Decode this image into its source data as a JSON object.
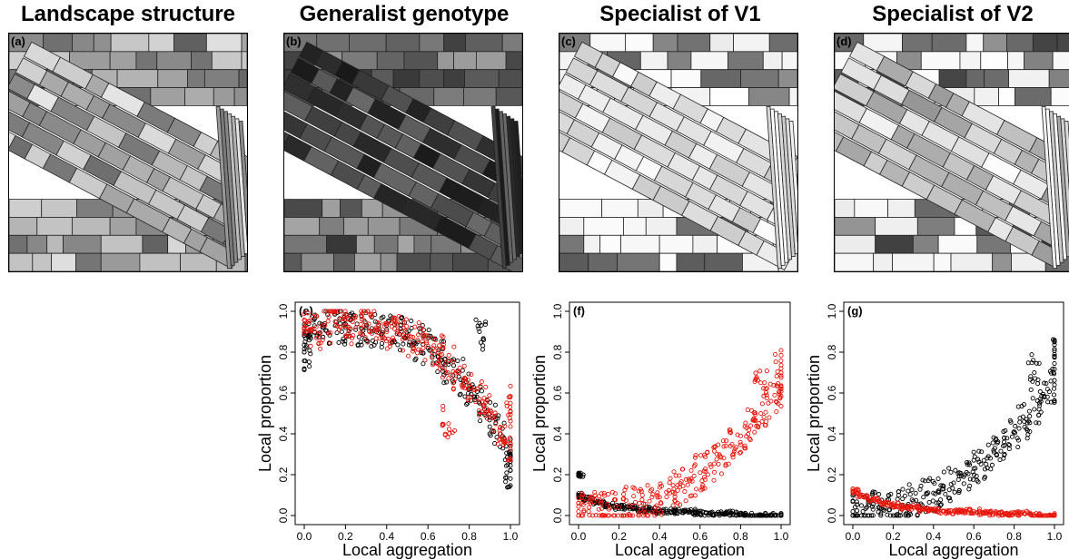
{
  "titles": [
    {
      "text": "Landscape structure"
    },
    {
      "text": "Generalist genotype"
    },
    {
      "text": "Specialist of V1"
    },
    {
      "text": "Specialist of V2"
    }
  ],
  "map_panels": [
    {
      "letter": "(a)",
      "shade": "landscape"
    },
    {
      "letter": "(b)",
      "shade": "generalist"
    },
    {
      "letter": "(c)",
      "shade": "specialist_v1"
    },
    {
      "letter": "(d)",
      "shade": "specialist_v2"
    }
  ],
  "colors": {
    "series_black": "#000000",
    "series_red": "#e8160c",
    "map_stroke": "#222222"
  },
  "chart_data": [
    {
      "type": "scatter",
      "letter": "(e)",
      "xlabel": "Local aggregation",
      "ylabel": "Local proportion",
      "xlim": [
        0,
        1
      ],
      "ylim": [
        0,
        1
      ],
      "xticks": [
        "0.0",
        "0.2",
        "0.4",
        "0.6",
        "0.8",
        "1.0"
      ],
      "yticks": [
        "0.0",
        "0.2",
        "0.4",
        "0.6",
        "0.8",
        "1.0"
      ],
      "series": [
        {
          "color": "#000000",
          "trend": "decreasing",
          "points": [
            [
              0.0,
              0.8
            ],
            [
              0.0,
              0.88
            ],
            [
              0.05,
              0.93
            ],
            [
              0.1,
              0.94
            ],
            [
              0.15,
              0.93
            ],
            [
              0.2,
              0.92
            ],
            [
              0.25,
              0.91
            ],
            [
              0.3,
              0.92
            ],
            [
              0.35,
              0.9
            ],
            [
              0.4,
              0.91
            ],
            [
              0.45,
              0.89
            ],
            [
              0.5,
              0.88
            ],
            [
              0.55,
              0.85
            ],
            [
              0.6,
              0.82
            ],
            [
              0.65,
              0.78
            ],
            [
              0.7,
              0.74
            ],
            [
              0.75,
              0.68
            ],
            [
              0.8,
              0.62
            ],
            [
              0.85,
              0.55
            ],
            [
              0.9,
              0.48
            ],
            [
              0.95,
              0.4
            ],
            [
              1.0,
              0.3
            ],
            [
              1.0,
              0.22
            ],
            [
              0.85,
              0.9
            ]
          ]
        },
        {
          "color": "#e8160c",
          "trend": "decreasing",
          "points": [
            [
              0.0,
              0.92
            ],
            [
              0.05,
              0.9
            ],
            [
              0.1,
              0.93
            ],
            [
              0.15,
              0.95
            ],
            [
              0.2,
              0.93
            ],
            [
              0.25,
              0.92
            ],
            [
              0.3,
              0.93
            ],
            [
              0.35,
              0.92
            ],
            [
              0.4,
              0.9
            ],
            [
              0.45,
              0.9
            ],
            [
              0.5,
              0.87
            ],
            [
              0.55,
              0.86
            ],
            [
              0.6,
              0.83
            ],
            [
              0.65,
              0.8
            ],
            [
              0.7,
              0.76
            ],
            [
              0.75,
              0.7
            ],
            [
              0.8,
              0.64
            ],
            [
              0.85,
              0.57
            ],
            [
              0.9,
              0.5
            ],
            [
              0.95,
              0.43
            ],
            [
              1.0,
              0.35
            ],
            [
              1.0,
              0.55
            ],
            [
              0.7,
              0.45
            ]
          ]
        }
      ]
    },
    {
      "type": "scatter",
      "letter": "(f)",
      "xlabel": "Local aggregation",
      "ylabel": "Local proportion",
      "xlim": [
        0,
        1
      ],
      "ylim": [
        0,
        1
      ],
      "xticks": [
        "0.0",
        "0.2",
        "0.4",
        "0.6",
        "0.8",
        "1.0"
      ],
      "yticks": [
        "0.0",
        "0.2",
        "0.4",
        "0.6",
        "0.8",
        "1.0"
      ],
      "series": [
        {
          "color": "#000000",
          "trend": "flat-near-zero",
          "points": [
            [
              0.0,
              0.2
            ],
            [
              0.0,
              0.1
            ],
            [
              0.05,
              0.08
            ],
            [
              0.1,
              0.06
            ],
            [
              0.15,
              0.05
            ],
            [
              0.2,
              0.04
            ],
            [
              0.25,
              0.04
            ],
            [
              0.3,
              0.03
            ],
            [
              0.35,
              0.03
            ],
            [
              0.4,
              0.02
            ],
            [
              0.45,
              0.02
            ],
            [
              0.5,
              0.02
            ],
            [
              0.55,
              0.02
            ],
            [
              0.6,
              0.01
            ],
            [
              0.65,
              0.01
            ],
            [
              0.7,
              0.01
            ],
            [
              0.75,
              0.01
            ],
            [
              0.8,
              0.01
            ],
            [
              0.85,
              0.0
            ],
            [
              0.9,
              0.0
            ],
            [
              0.95,
              0.0
            ],
            [
              1.0,
              0.0
            ]
          ]
        },
        {
          "color": "#e8160c",
          "trend": "increasing",
          "points": [
            [
              0.0,
              0.02
            ],
            [
              0.05,
              0.02
            ],
            [
              0.1,
              0.03
            ],
            [
              0.15,
              0.03
            ],
            [
              0.2,
              0.04
            ],
            [
              0.25,
              0.05
            ],
            [
              0.3,
              0.06
            ],
            [
              0.35,
              0.07
            ],
            [
              0.4,
              0.09
            ],
            [
              0.45,
              0.11
            ],
            [
              0.5,
              0.14
            ],
            [
              0.55,
              0.17
            ],
            [
              0.6,
              0.21
            ],
            [
              0.65,
              0.25
            ],
            [
              0.7,
              0.29
            ],
            [
              0.75,
              0.34
            ],
            [
              0.8,
              0.39
            ],
            [
              0.85,
              0.44
            ],
            [
              0.9,
              0.5
            ],
            [
              0.95,
              0.56
            ],
            [
              1.0,
              0.62
            ],
            [
              1.0,
              0.72
            ],
            [
              0.9,
              0.65
            ]
          ]
        }
      ]
    },
    {
      "type": "scatter",
      "letter": "(g)",
      "xlabel": "Local aggregation",
      "ylabel": "Local proportion",
      "xlim": [
        0,
        1
      ],
      "ylim": [
        0,
        1
      ],
      "xticks": [
        "0.0",
        "0.2",
        "0.4",
        "0.6",
        "0.8",
        "1.0"
      ],
      "yticks": [
        "0.0",
        "0.2",
        "0.4",
        "0.6",
        "0.8",
        "1.0"
      ],
      "series": [
        {
          "color": "#000000",
          "trend": "increasing",
          "points": [
            [
              0.0,
              0.02
            ],
            [
              0.05,
              0.02
            ],
            [
              0.1,
              0.03
            ],
            [
              0.15,
              0.03
            ],
            [
              0.2,
              0.04
            ],
            [
              0.25,
              0.05
            ],
            [
              0.3,
              0.07
            ],
            [
              0.35,
              0.09
            ],
            [
              0.4,
              0.11
            ],
            [
              0.45,
              0.13
            ],
            [
              0.5,
              0.16
            ],
            [
              0.55,
              0.19
            ],
            [
              0.6,
              0.23
            ],
            [
              0.65,
              0.27
            ],
            [
              0.7,
              0.31
            ],
            [
              0.75,
              0.36
            ],
            [
              0.8,
              0.41
            ],
            [
              0.85,
              0.46
            ],
            [
              0.9,
              0.52
            ],
            [
              0.95,
              0.58
            ],
            [
              1.0,
              0.64
            ],
            [
              1.0,
              0.78
            ],
            [
              0.9,
              0.7
            ]
          ]
        },
        {
          "color": "#e8160c",
          "trend": "flat-near-zero",
          "points": [
            [
              0.0,
              0.12
            ],
            [
              0.05,
              0.1
            ],
            [
              0.1,
              0.08
            ],
            [
              0.15,
              0.06
            ],
            [
              0.2,
              0.05
            ],
            [
              0.25,
              0.04
            ],
            [
              0.3,
              0.04
            ],
            [
              0.35,
              0.03
            ],
            [
              0.4,
              0.03
            ],
            [
              0.45,
              0.02
            ],
            [
              0.5,
              0.02
            ],
            [
              0.55,
              0.02
            ],
            [
              0.6,
              0.02
            ],
            [
              0.65,
              0.01
            ],
            [
              0.7,
              0.01
            ],
            [
              0.75,
              0.01
            ],
            [
              0.8,
              0.01
            ],
            [
              0.85,
              0.01
            ],
            [
              0.9,
              0.0
            ],
            [
              0.95,
              0.0
            ],
            [
              1.0,
              0.0
            ]
          ]
        }
      ]
    }
  ]
}
